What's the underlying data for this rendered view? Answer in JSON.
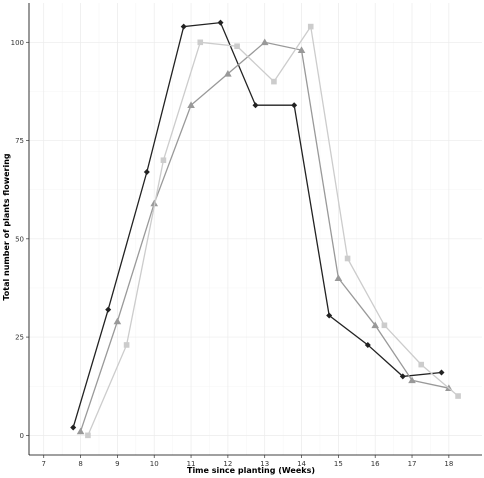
{
  "chart_data": {
    "type": "line",
    "title": "",
    "xlabel": "Time since planting (Weeks)",
    "ylabel": "Total number of plants flowering",
    "xlim": [
      6.6,
      18.9
    ],
    "ylim": [
      -5,
      110
    ],
    "xticks": [
      "7",
      "8",
      "9",
      "10",
      "11",
      "12",
      "13",
      "14",
      "15",
      "16",
      "17",
      "18"
    ],
    "yticks": [
      "0",
      "25",
      "50",
      "75",
      "100"
    ],
    "grid": true,
    "legend": "none",
    "series": [
      {
        "color": "#222222",
        "marker": "diamond",
        "x": [
          7.8,
          8.75,
          9.8,
          10.8,
          11.8,
          12.75,
          13.8,
          14.75,
          15.8,
          16.75,
          17.8
        ],
        "y": [
          2,
          32,
          67,
          104,
          105,
          84,
          84,
          30.5,
          23,
          15,
          16
        ]
      },
      {
        "color": "#999999",
        "marker": "triangle",
        "x": [
          8.0,
          9.0,
          10.0,
          11.0,
          12.0,
          13.0,
          14.0,
          15.0,
          16.0,
          17.0,
          18.0
        ],
        "y": [
          1,
          29,
          59,
          84,
          92,
          100,
          98,
          40,
          28,
          14,
          12
        ]
      },
      {
        "color": "#cccccc",
        "marker": "square",
        "x": [
          8.2,
          9.25,
          10.25,
          11.25,
          12.25,
          13.25,
          14.25,
          15.25,
          16.25,
          17.25,
          18.25
        ],
        "y": [
          0,
          23,
          70,
          100,
          99,
          90,
          104,
          45,
          28,
          18,
          10
        ]
      }
    ]
  }
}
